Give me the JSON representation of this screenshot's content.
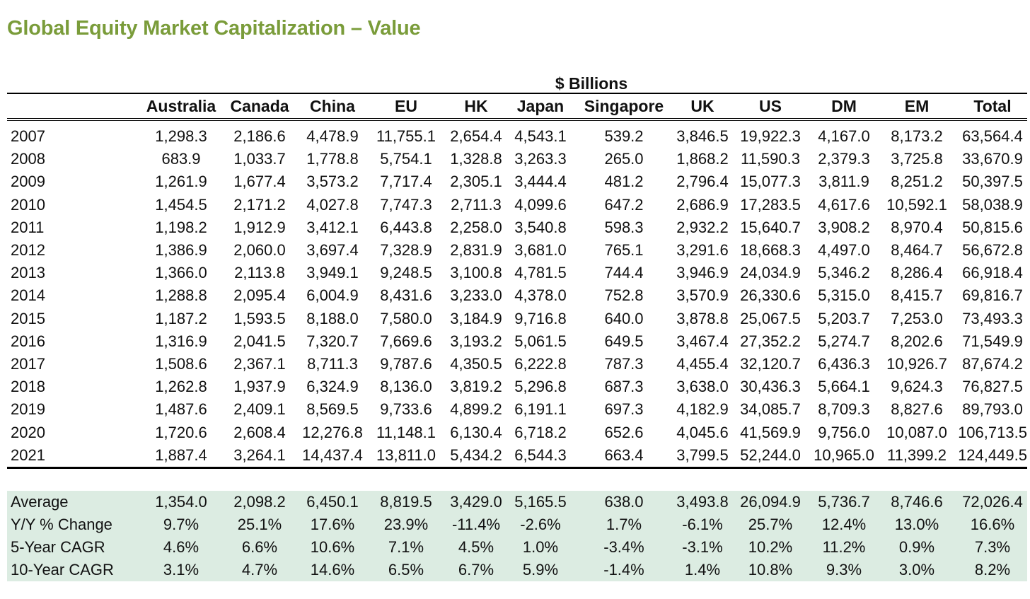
{
  "title": "Global Equity Market Capitalization – Value",
  "unit_label": "$ Billions",
  "columns": [
    "",
    "Australia",
    "Canada",
    "China",
    "EU",
    "HK",
    "Japan",
    "Singapore",
    "UK",
    "US",
    "DM",
    "EM",
    "Total"
  ],
  "rows": [
    [
      "2007",
      "1,298.3",
      "2,186.6",
      "4,478.9",
      "11,755.1",
      "2,654.4",
      "4,543.1",
      "539.2",
      "3,846.5",
      "19,922.3",
      "4,167.0",
      "8,173.2",
      "63,564.4"
    ],
    [
      "2008",
      "683.9",
      "1,033.7",
      "1,778.8",
      "5,754.1",
      "1,328.8",
      "3,263.3",
      "265.0",
      "1,868.2",
      "11,590.3",
      "2,379.3",
      "3,725.8",
      "33,670.9"
    ],
    [
      "2009",
      "1,261.9",
      "1,677.4",
      "3,573.2",
      "7,717.4",
      "2,305.1",
      "3,444.4",
      "481.2",
      "2,796.4",
      "15,077.3",
      "3,811.9",
      "8,251.2",
      "50,397.5"
    ],
    [
      "2010",
      "1,454.5",
      "2,171.2",
      "4,027.8",
      "7,747.3",
      "2,711.3",
      "4,099.6",
      "647.2",
      "2,686.9",
      "17,283.5",
      "4,617.6",
      "10,592.1",
      "58,038.9"
    ],
    [
      "2011",
      "1,198.2",
      "1,912.9",
      "3,412.1",
      "6,443.8",
      "2,258.0",
      "3,540.8",
      "598.3",
      "2,932.2",
      "15,640.7",
      "3,908.2",
      "8,970.4",
      "50,815.6"
    ],
    [
      "2012",
      "1,386.9",
      "2,060.0",
      "3,697.4",
      "7,328.9",
      "2,831.9",
      "3,681.0",
      "765.1",
      "3,291.6",
      "18,668.3",
      "4,497.0",
      "8,464.7",
      "56,672.8"
    ],
    [
      "2013",
      "1,366.0",
      "2,113.8",
      "3,949.1",
      "9,248.5",
      "3,100.8",
      "4,781.5",
      "744.4",
      "3,946.9",
      "24,034.9",
      "5,346.2",
      "8,286.4",
      "66,918.4"
    ],
    [
      "2014",
      "1,288.8",
      "2,095.4",
      "6,004.9",
      "8,431.6",
      "3,233.0",
      "4,378.0",
      "752.8",
      "3,570.9",
      "26,330.6",
      "5,315.0",
      "8,415.7",
      "69,816.7"
    ],
    [
      "2015",
      "1,187.2",
      "1,593.5",
      "8,188.0",
      "7,580.0",
      "3,184.9",
      "9,716.8",
      "640.0",
      "3,878.8",
      "25,067.5",
      "5,203.7",
      "7,253.0",
      "73,493.3"
    ],
    [
      "2016",
      "1,316.9",
      "2,041.5",
      "7,320.7",
      "7,669.6",
      "3,193.2",
      "5,061.5",
      "649.5",
      "3,467.4",
      "27,352.2",
      "5,274.7",
      "8,202.6",
      "71,549.9"
    ],
    [
      "2017",
      "1,508.6",
      "2,367.1",
      "8,711.3",
      "9,787.6",
      "4,350.5",
      "6,222.8",
      "787.3",
      "4,455.4",
      "32,120.7",
      "6,436.3",
      "10,926.7",
      "87,674.2"
    ],
    [
      "2018",
      "1,262.8",
      "1,937.9",
      "6,324.9",
      "8,136.0",
      "3,819.2",
      "5,296.8",
      "687.3",
      "3,638.0",
      "30,436.3",
      "5,664.1",
      "9,624.3",
      "76,827.5"
    ],
    [
      "2019",
      "1,487.6",
      "2,409.1",
      "8,569.5",
      "9,733.6",
      "4,899.2",
      "6,191.1",
      "697.3",
      "4,182.9",
      "34,085.7",
      "8,709.3",
      "8,827.6",
      "89,793.0"
    ],
    [
      "2020",
      "1,720.6",
      "2,608.4",
      "12,276.8",
      "11,148.1",
      "6,130.4",
      "6,718.2",
      "652.6",
      "4,045.6",
      "41,569.9",
      "9,756.0",
      "10,087.0",
      "106,713.5"
    ],
    [
      "2021",
      "1,887.4",
      "3,264.1",
      "14,437.4",
      "13,811.0",
      "5,434.2",
      "6,544.3",
      "663.4",
      "3,799.5",
      "52,244.0",
      "10,965.0",
      "11,399.2",
      "124,449.5"
    ]
  ],
  "summary": [
    [
      "Average",
      "1,354.0",
      "2,098.2",
      "6,450.1",
      "8,819.5",
      "3,429.0",
      "5,165.5",
      "638.0",
      "3,493.8",
      "26,094.9",
      "5,736.7",
      "8,746.6",
      "72,026.4"
    ],
    [
      "Y/Y % Change",
      "9.7%",
      "25.1%",
      "17.6%",
      "23.9%",
      "-11.4%",
      "-2.6%",
      "1.7%",
      "-6.1%",
      "25.7%",
      "12.4%",
      "13.0%",
      "16.6%"
    ],
    [
      "5-Year CAGR",
      "4.6%",
      "6.6%",
      "10.6%",
      "7.1%",
      "4.5%",
      "1.0%",
      "-3.4%",
      "-3.1%",
      "10.2%",
      "11.2%",
      "0.9%",
      "7.3%"
    ],
    [
      "10-Year CAGR",
      "3.1%",
      "4.7%",
      "14.6%",
      "6.5%",
      "6.7%",
      "5.9%",
      "-1.4%",
      "1.4%",
      "10.8%",
      "9.3%",
      "3.0%",
      "8.2%"
    ]
  ],
  "colors": {
    "title": "#7a9c3a",
    "summary_background": "#dcece2"
  }
}
